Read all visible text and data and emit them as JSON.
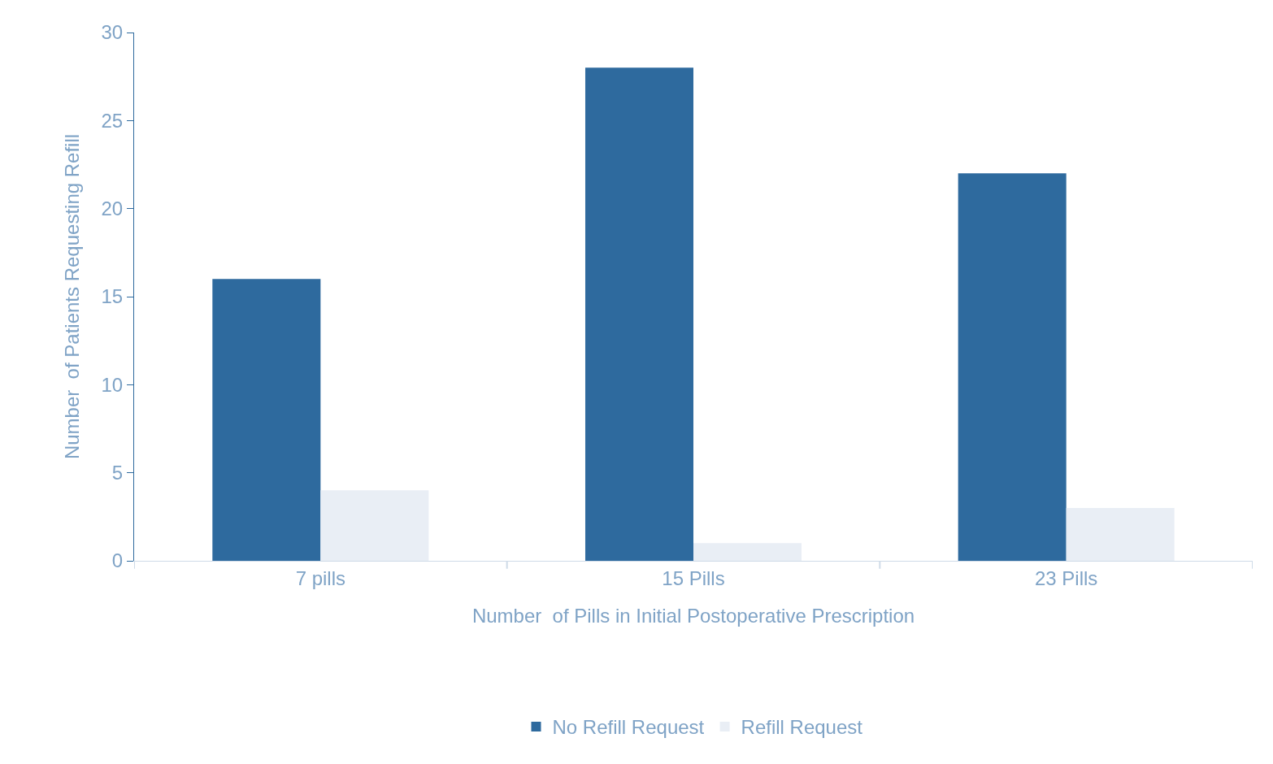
{
  "chart_data": {
    "type": "bar",
    "xlabel": "Number  of Pills in Initial Postoperative Prescription",
    "ylabel": "Number  of Patients Requesting Refill",
    "categories": [
      "7 pills",
      "15 Pills",
      "23 Pills"
    ],
    "series": [
      {
        "name": "No Refill Request",
        "color": "#2e6a9e",
        "values": [
          16,
          28,
          22
        ]
      },
      {
        "name": "Refill Request",
        "color": "#e9eef5",
        "values": [
          4,
          1,
          3
        ]
      }
    ],
    "ylim": [
      0,
      30
    ],
    "yticks": [
      0,
      5,
      10,
      15,
      20,
      25,
      30
    ],
    "grid": false,
    "legend": "bottom"
  }
}
